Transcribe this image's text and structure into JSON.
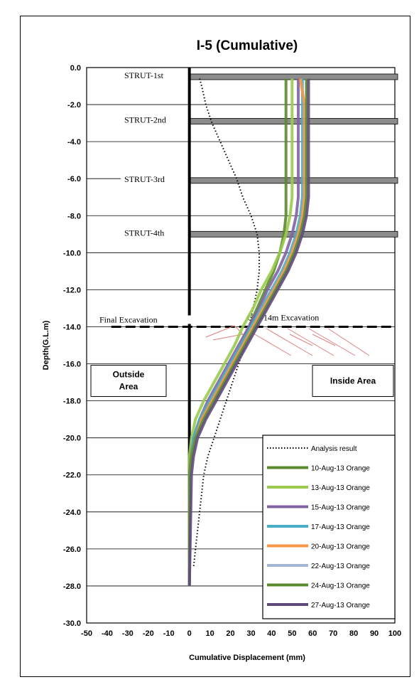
{
  "chart_data": {
    "type": "line",
    "title": "I-5 (Cumulative)",
    "xlabel": "Cumulative Displacement (mm)",
    "ylabel": "Depth(G.L.m)",
    "xlim": [
      -50,
      100
    ],
    "ylim": [
      -30,
      0
    ],
    "x_ticks": [
      -50,
      -40,
      -30,
      -20,
      -10,
      0,
      10,
      20,
      30,
      40,
      50,
      60,
      70,
      80,
      90,
      100
    ],
    "y_ticks": [
      "0.0",
      "-2.0",
      "-4.0",
      "-6.0",
      "-8.0",
      "-10.0",
      "-12.0",
      "-14.0",
      "-16.0",
      "-18.0",
      "-20.0",
      "-22.0",
      "-24.0",
      "-26.0",
      "-28.0",
      "-30.0"
    ],
    "grid": "horizontal",
    "legend_position": "bottom-right",
    "series": [
      {
        "name": "Analysis result",
        "color": "#000000",
        "style": "dotted",
        "x": [
          5,
          6,
          8,
          11,
          15,
          19,
          23,
          26,
          30,
          33,
          34,
          34,
          33,
          31,
          29,
          27,
          24,
          21,
          18,
          15,
          12,
          9,
          7,
          5,
          3,
          2
        ],
        "y": [
          -0.6,
          -1,
          -2,
          -3,
          -4,
          -5,
          -6,
          -7,
          -8,
          -9,
          -10,
          -11,
          -12,
          -13,
          -14,
          -15,
          -16,
          -17,
          -18,
          -19,
          -20,
          -21,
          -22,
          -24,
          -26,
          -27
        ]
      },
      {
        "name": "10-Aug-13 Orange",
        "color": "#5b8a2e",
        "style": "solid",
        "x": [
          47,
          47,
          47,
          47,
          47,
          47,
          46,
          44,
          41,
          37,
          33,
          29,
          25,
          21,
          16,
          11,
          6,
          3,
          1,
          0,
          0,
          0
        ],
        "y": [
          -0.6,
          -2,
          -4,
          -6,
          -7,
          -8,
          -9,
          -10,
          -11,
          -12,
          -13,
          -14,
          -15,
          -16,
          -17,
          -18,
          -19,
          -20,
          -21,
          -22,
          -25,
          -28
        ]
      },
      {
        "name": "13-Aug-13 Orange",
        "color": "#9acb4e",
        "style": "solid",
        "x": [
          50,
          50,
          50,
          50,
          50,
          49,
          47,
          44,
          40,
          35,
          31,
          26,
          22,
          17,
          12,
          7,
          3,
          1,
          0,
          0,
          0
        ],
        "y": [
          -0.6,
          -2,
          -4,
          -6,
          -7,
          -8,
          -9,
          -10,
          -11,
          -12,
          -13,
          -14,
          -15,
          -16,
          -17,
          -18,
          -19,
          -20,
          -21,
          -22,
          -28
        ]
      },
      {
        "name": "15-Aug-13 Orange",
        "color": "#8064a2",
        "style": "solid",
        "x": [
          53,
          53,
          53,
          53,
          53,
          52,
          50,
          47,
          43,
          38,
          34,
          29,
          24,
          19,
          14,
          9,
          5,
          2,
          1,
          0,
          0
        ],
        "y": [
          -0.6,
          -2,
          -4,
          -6,
          -7,
          -8,
          -9,
          -10,
          -11,
          -12,
          -13,
          -14,
          -15,
          -16,
          -17,
          -18,
          -19,
          -20,
          -21,
          -22,
          -28
        ]
      },
      {
        "name": "17-Aug-13 Orange",
        "color": "#4bacc6",
        "style": "solid",
        "x": [
          55,
          55,
          55,
          55,
          55,
          54,
          52,
          49,
          45,
          40,
          35,
          30,
          25,
          20,
          15,
          10,
          5,
          2,
          1,
          0,
          0
        ],
        "y": [
          -0.6,
          -2,
          -4,
          -6,
          -7,
          -8,
          -9,
          -10,
          -11,
          -12,
          -13,
          -14,
          -15,
          -16,
          -17,
          -18,
          -19,
          -20,
          -21,
          -22,
          -28
        ]
      },
      {
        "name": "20-Aug-13 Orange",
        "color": "#f79646",
        "style": "solid",
        "x": [
          54,
          56,
          56,
          56,
          56,
          55,
          53,
          50,
          46,
          41,
          36,
          31,
          26,
          21,
          16,
          11,
          6,
          3,
          1,
          0,
          0
        ],
        "y": [
          -0.6,
          -2,
          -4,
          -6,
          -7,
          -8,
          -9,
          -10,
          -11,
          -12,
          -13,
          -14,
          -15,
          -16,
          -17,
          -18,
          -19,
          -20,
          -21,
          -22,
          -28
        ]
      },
      {
        "name": "22-Aug-13 Orange",
        "color": "#a5b5d6",
        "style": "solid",
        "x": [
          57,
          57,
          57,
          57,
          57,
          56,
          54,
          51,
          47,
          42,
          37,
          32,
          27,
          22,
          17,
          12,
          7,
          3,
          1,
          0,
          0
        ],
        "y": [
          -0.6,
          -2,
          -4,
          -6,
          -7,
          -8,
          -9,
          -10,
          -11,
          -12,
          -13,
          -14,
          -15,
          -16,
          -17,
          -18,
          -19,
          -20,
          -21,
          -22,
          -28
        ]
      },
      {
        "name": "24-Aug-13 Orange",
        "color": "#5b8a2e",
        "style": "solid",
        "x": [
          57,
          57,
          57,
          57,
          57,
          56,
          54,
          51,
          47,
          42,
          37,
          32,
          27,
          22,
          17,
          12,
          7,
          3,
          1,
          0,
          0
        ],
        "y": [
          -0.6,
          -2,
          -4,
          -6,
          -7,
          -8,
          -9,
          -10,
          -11,
          -12,
          -13,
          -14,
          -15,
          -16,
          -17,
          -18,
          -19,
          -20,
          -21,
          -22,
          -28
        ]
      },
      {
        "name": "27-Aug-13 Orange",
        "color": "#604a7b",
        "style": "solid",
        "x": [
          58,
          58,
          58,
          58,
          58,
          57,
          55,
          52,
          48,
          43,
          38,
          33,
          28,
          23,
          18,
          13,
          8,
          4,
          2,
          1,
          0
        ],
        "y": [
          -0.6,
          -2,
          -4,
          -6,
          -7,
          -8,
          -9,
          -10,
          -11,
          -12,
          -13,
          -14,
          -15,
          -16,
          -17,
          -18,
          -19,
          -20,
          -21,
          -22,
          -28
        ]
      }
    ],
    "struts": [
      {
        "label": "STRUT-1st",
        "depth": -0.5
      },
      {
        "label": "STRUT-2nd",
        "depth": -2.9
      },
      {
        "label": "STRUT-3rd",
        "depth": -6.1
      },
      {
        "label": "STRUT-4th",
        "depth": -9.0
      }
    ],
    "excavation": {
      "left_label": "Final Excavation",
      "right_label": "GL.-14m Excavation",
      "depth": -14.0
    },
    "area_labels": {
      "outside": [
        "Outside",
        "Area"
      ],
      "inside": "Inside Area"
    }
  }
}
